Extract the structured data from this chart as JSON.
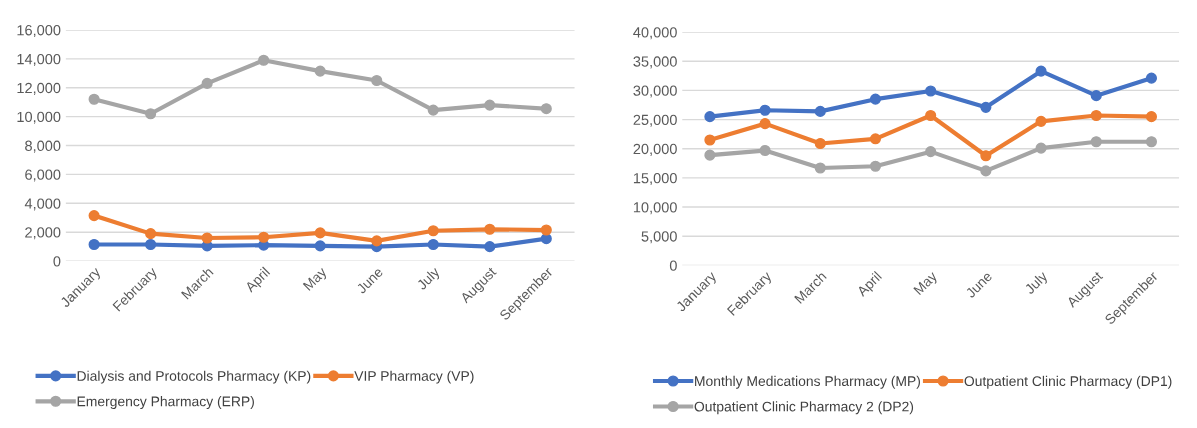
{
  "chart_data": [
    {
      "type": "line",
      "categories": [
        "January",
        "February",
        "March",
        "April",
        "May",
        "June",
        "July",
        "August",
        "September"
      ],
      "series": [
        {
          "name": "Dialysis and Protocols Pharmacy (KP)",
          "color": "#4472c4",
          "values": [
            1150,
            1150,
            1050,
            1100,
            1050,
            1000,
            1150,
            1000,
            1550
          ]
        },
        {
          "name": "VIP Pharmacy (VP)",
          "color": "#ed7d31",
          "values": [
            3150,
            1900,
            1600,
            1650,
            1950,
            1400,
            2100,
            2200,
            2150
          ]
        },
        {
          "name": "Emergency Pharmacy (ERP)",
          "color": "#a5a5a5",
          "values": [
            11200,
            10200,
            12300,
            13900,
            13150,
            12500,
            10450,
            10800,
            10550
          ]
        }
      ],
      "ylim": [
        0,
        16000
      ],
      "yticks": [
        {
          "value": 0,
          "label": "0"
        },
        {
          "value": 2000,
          "label": "2,000"
        },
        {
          "value": 4000,
          "label": "4,000"
        },
        {
          "value": 6000,
          "label": "6,000"
        },
        {
          "value": 8000,
          "label": "8,000"
        },
        {
          "value": 10000,
          "label": "10,000"
        },
        {
          "value": 12000,
          "label": "12,000"
        },
        {
          "value": 14000,
          "label": "14,000"
        },
        {
          "value": 16000,
          "label": "16,000"
        }
      ],
      "grid": "y",
      "legend": "bottom",
      "marker": "circle",
      "line_style": "solid"
    },
    {
      "type": "line",
      "categories": [
        "January",
        "February",
        "March",
        "April",
        "May",
        "June",
        "July",
        "August",
        "September"
      ],
      "series": [
        {
          "name": "Monthly Medications Pharmacy (MP)",
          "color": "#4472c4",
          "values": [
            25500,
            26600,
            26400,
            28500,
            29900,
            27100,
            33300,
            29100,
            32100
          ]
        },
        {
          "name": "Outpatient Clinic Pharmacy (DP1)",
          "color": "#ed7d31",
          "values": [
            21500,
            24300,
            20900,
            21700,
            25700,
            18800,
            24700,
            25700,
            25500
          ]
        },
        {
          "name": "Outpatient Clinic Pharmacy 2 (DP2)",
          "color": "#a5a5a5",
          "values": [
            18900,
            19700,
            16700,
            17000,
            19500,
            16200,
            20100,
            21200,
            21200
          ]
        }
      ],
      "ylim": [
        0,
        40000
      ],
      "yticks": [
        {
          "value": 0,
          "label": "0"
        },
        {
          "value": 5000,
          "label": "5,000"
        },
        {
          "value": 10000,
          "label": "10,000"
        },
        {
          "value": 15000,
          "label": "15,000"
        },
        {
          "value": 20000,
          "label": "20,000"
        },
        {
          "value": 25000,
          "label": "25,000"
        },
        {
          "value": 30000,
          "label": "30,000"
        },
        {
          "value": 35000,
          "label": "35,000"
        },
        {
          "value": 40000,
          "label": "40,000"
        }
      ],
      "grid": "y",
      "legend": "bottom",
      "marker": "circle",
      "line_style": "solid"
    }
  ]
}
